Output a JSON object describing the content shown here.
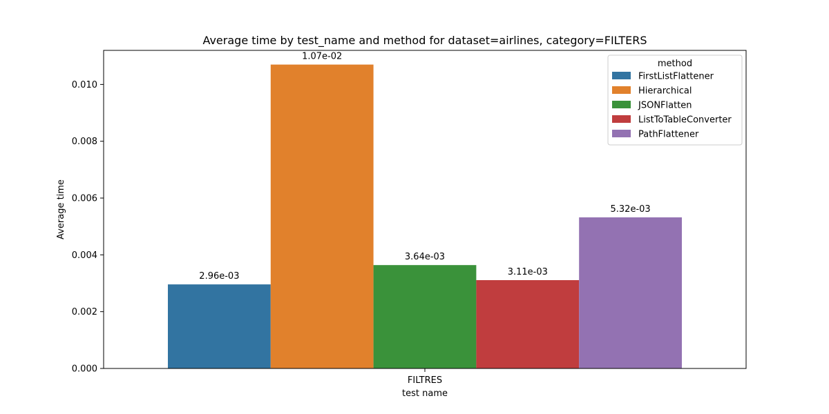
{
  "chart_data": {
    "type": "bar",
    "title": "Average time by test_name and method for dataset=airlines, category=FILTERS",
    "xlabel": "test name",
    "ylabel": "Average time",
    "categories": [
      "FILTRES"
    ],
    "ylim": [
      0,
      0.0112
    ],
    "yticks": [
      "0.000",
      "0.002",
      "0.004",
      "0.006",
      "0.008",
      "0.010"
    ],
    "yticks_values": [
      0.0,
      0.002,
      0.004,
      0.006,
      0.008,
      0.01
    ],
    "grid": false,
    "legend": {
      "title": "method",
      "placement": "top-right"
    },
    "series": [
      {
        "name": "FirstListFlattener",
        "values": [
          0.00296
        ],
        "label": "2.96e-03",
        "color": "#3274a1"
      },
      {
        "name": "Hierarchical",
        "values": [
          0.0107
        ],
        "label": "1.07e-02",
        "color": "#e1812c"
      },
      {
        "name": "JSONFlatten",
        "values": [
          0.00364
        ],
        "label": "3.64e-03",
        "color": "#3a923a"
      },
      {
        "name": "ListToTableConverter",
        "values": [
          0.00311
        ],
        "label": "3.11e-03",
        "color": "#c03d3e"
      },
      {
        "name": "PathFlattener",
        "values": [
          0.00532
        ],
        "label": "5.32e-03",
        "color": "#9372b2"
      }
    ]
  }
}
